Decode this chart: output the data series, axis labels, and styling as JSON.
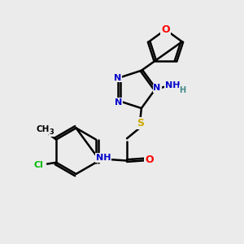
{
  "bg_color": "#ebebeb",
  "atom_colors": {
    "C": "#000000",
    "N": "#0000cc",
    "O": "#ff0000",
    "S": "#ccaa00",
    "Cl": "#00bb00",
    "H": "#448888"
  },
  "bond_color": "#000000",
  "bond_lw": 1.8,
  "font_size": 8,
  "figsize": [
    3.0,
    3.0
  ],
  "dpi": 100,
  "xlim": [
    0,
    10
  ],
  "ylim": [
    0,
    10
  ]
}
